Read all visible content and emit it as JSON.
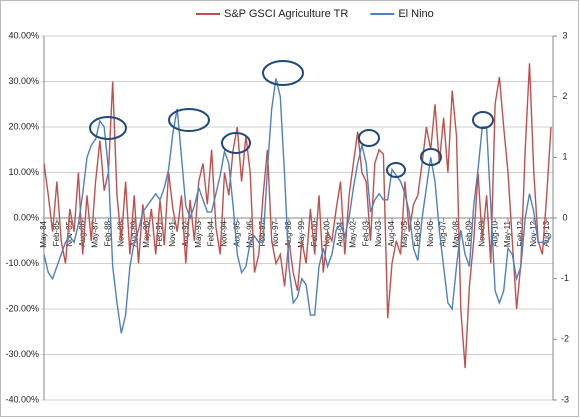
{
  "chart_data": {
    "type": "line",
    "categories": [
      "May-84",
      null,
      null,
      "Feb-85",
      null,
      null,
      "Nov-85",
      null,
      null,
      "Aug-86",
      null,
      null,
      "May-87",
      null,
      null,
      "Feb-88",
      null,
      null,
      "Nov-88",
      null,
      null,
      "Aug-89",
      null,
      null,
      "May-90",
      null,
      null,
      "Feb-91",
      null,
      null,
      "Nov-91",
      null,
      null,
      "Aug-92",
      null,
      null,
      "May-93",
      null,
      null,
      "Feb-94",
      null,
      null,
      "Nov-94",
      null,
      null,
      "Aug-95",
      null,
      null,
      "May-96",
      null,
      null,
      "Feb-97",
      null,
      null,
      "Nov-97",
      null,
      null,
      "Aug-98",
      null,
      null,
      "May-99",
      null,
      null,
      "Feb-00",
      null,
      null,
      "Nov-00",
      null,
      null,
      "Aug-01",
      null,
      null,
      "May-02",
      null,
      null,
      "Feb-03",
      null,
      null,
      "Nov-03",
      null,
      null,
      "Aug-04",
      null,
      null,
      "May-05",
      null,
      null,
      "Feb-06",
      null,
      null,
      "Nov-06",
      null,
      null,
      "Aug-07",
      null,
      null,
      "May-08",
      null,
      null,
      "Feb-09",
      null,
      null,
      "Nov-09",
      null,
      null,
      "Aug-10",
      null,
      null,
      "May-11",
      null,
      null,
      "Feb-12",
      null,
      null,
      "Nov-12",
      null,
      null,
      "Aug-13",
      null
    ],
    "series": [
      {
        "name": "S&P GSCI Agriculture TR",
        "color": "#c0504d",
        "values": [
          12,
          5,
          -3,
          8,
          -5,
          -10,
          2,
          -3,
          10,
          -8,
          5,
          -5,
          8,
          17,
          6,
          10,
          30,
          5,
          -5,
          8,
          -8,
          5,
          -10,
          3,
          -5,
          2,
          -8,
          4,
          -6,
          10,
          2,
          -3,
          5,
          -10,
          4,
          -5,
          8,
          12,
          3,
          15,
          -2,
          -8,
          10,
          5,
          15,
          20,
          8,
          18,
          10,
          -12,
          -8,
          5,
          15,
          -5,
          -10,
          -8,
          -15,
          -5,
          -12,
          -16,
          -5,
          -10,
          2,
          -8,
          5,
          -12,
          -3,
          -5,
          2,
          8,
          -8,
          5,
          12,
          19,
          10,
          8,
          -5,
          12,
          15,
          14,
          -22,
          -10,
          -5,
          -8,
          8,
          -3,
          3,
          5,
          12,
          20,
          15,
          25,
          12,
          22,
          10,
          28,
          18,
          -20,
          -33,
          -15,
          -5,
          10,
          -5,
          5,
          -10,
          25,
          31,
          20,
          10,
          -5,
          -20,
          -10,
          15,
          34,
          10,
          -5,
          -8,
          5,
          20
        ]
      },
      {
        "name": "El Nino",
        "color": "#4f81bd",
        "axis": "y2",
        "values": [
          -0.6,
          -0.9,
          -1.0,
          -0.8,
          -0.6,
          -0.4,
          -0.3,
          -0.4,
          -0.1,
          0.4,
          1.0,
          1.2,
          1.3,
          1.6,
          1.5,
          0.8,
          -0.8,
          -1.4,
          -1.9,
          -1.6,
          -0.8,
          -0.4,
          -0.2,
          0.1,
          0.2,
          0.3,
          0.4,
          0.3,
          0.5,
          0.8,
          1.4,
          1.8,
          1.0,
          0.2,
          0,
          0.2,
          0.5,
          0.3,
          0.1,
          0.1,
          0.4,
          0.7,
          1.1,
          0.9,
          0.2,
          -0.6,
          -0.9,
          -0.8,
          -0.4,
          -0.3,
          -0.4,
          -0.4,
          0.8,
          1.8,
          2.3,
          2.0,
          0.7,
          -0.8,
          -1.4,
          -1.3,
          -1.0,
          -1.1,
          -1.6,
          -1.6,
          -0.8,
          -0.5,
          -0.8,
          -0.6,
          -0.2,
          -0.1,
          -0.3,
          0,
          0.5,
          0.9,
          1.2,
          0.9,
          0.1,
          0.3,
          0.4,
          0.3,
          0.3,
          0.8,
          0.7,
          0.6,
          0.4,
          0.1,
          -0.5,
          -0.7,
          0,
          0.5,
          1.0,
          0.6,
          -0.2,
          -0.8,
          -1.4,
          -1.5,
          -0.8,
          -0.2,
          -0.6,
          -0.8,
          0.2,
          0.8,
          1.5,
          1.5,
          0.2,
          -1.2,
          -1.4,
          -1.2,
          -0.5,
          -0.6,
          -1.0,
          -0.8,
          0,
          0.4,
          0.1,
          -0.4,
          -0.4,
          -0.4,
          -0.3
        ]
      }
    ],
    "ylim": [
      -40,
      40
    ],
    "yticks": [
      {
        "value": -40,
        "label": "-40.00%"
      },
      {
        "value": -30,
        "label": "-30.00%"
      },
      {
        "value": -20,
        "label": "-20.00%"
      },
      {
        "value": -10,
        "label": "-10.00%"
      },
      {
        "value": 0,
        "label": "0.00%"
      },
      {
        "value": 10,
        "label": "10.00%"
      },
      {
        "value": 20,
        "label": "20.00%"
      },
      {
        "value": 30,
        "label": "30.00%"
      },
      {
        "value": 40,
        "label": "40.00%"
      }
    ],
    "y2lim": [
      -3,
      3
    ],
    "y2ticks": [
      -3,
      -2,
      -1,
      0,
      1,
      2,
      3
    ],
    "grid": true,
    "legend": "top"
  }
}
